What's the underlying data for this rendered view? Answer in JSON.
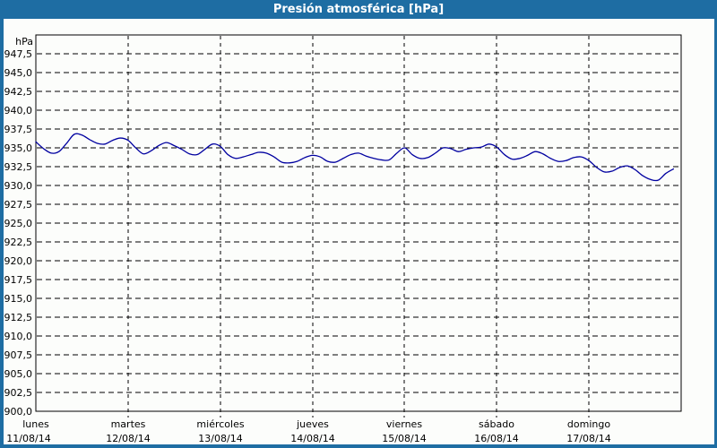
{
  "window": {
    "title": "Presión atmosférica [hPa]"
  },
  "colors": {
    "frame_blue": "#1E6DA3",
    "panel_bg": "#FCFDFB",
    "grid_black": "#000000",
    "title_text": "#FFFFFF",
    "line_navy": "#0000A0"
  },
  "chart_data": {
    "type": "line",
    "title": "Presión atmosférica [hPa]",
    "ylabel": "hPa",
    "ylim": [
      900,
      950
    ],
    "ytick_step": 2.5,
    "ytick_labels": [
      "947,5",
      "945,0",
      "942,5",
      "940,0",
      "937,5",
      "935,0",
      "932,5",
      "930,0",
      "927,5",
      "925,0",
      "922,5",
      "920,0",
      "917,5",
      "915,0",
      "912,5",
      "910,0",
      "907,5",
      "905,0",
      "902,5",
      "900,0"
    ],
    "grid": "dashed",
    "legend_position": "none",
    "x_unit": "hours",
    "sample_interval_hours": 2,
    "x_start": "lunes 11/08/14 00:00",
    "days": [
      {
        "name": "lunes",
        "date": "11/08/14"
      },
      {
        "name": "martes",
        "date": "12/08/14"
      },
      {
        "name": "miércoles",
        "date": "13/08/14"
      },
      {
        "name": "jueves",
        "date": "14/08/14"
      },
      {
        "name": "viernes",
        "date": "15/08/14"
      },
      {
        "name": "sábado",
        "date": "16/08/14"
      },
      {
        "name": "domingo",
        "date": "17/08/14"
      }
    ],
    "series": [
      {
        "name": "Presión atmosférica",
        "color": "#0000A0",
        "values": [
          935.8,
          934.9,
          934.3,
          934.5,
          935.6,
          936.8,
          936.7,
          936.1,
          935.6,
          935.5,
          936.0,
          936.3,
          936.0,
          935.0,
          934.2,
          934.6,
          935.3,
          935.7,
          935.3,
          934.8,
          934.2,
          934.1,
          934.8,
          935.5,
          935.2,
          934.1,
          933.6,
          933.8,
          934.1,
          934.4,
          934.3,
          933.8,
          933.1,
          933.0,
          933.2,
          933.7,
          934.0,
          933.8,
          933.2,
          933.1,
          933.6,
          934.1,
          934.3,
          933.9,
          933.6,
          933.4,
          933.4,
          934.3,
          935.0,
          934.1,
          933.6,
          933.7,
          934.3,
          935.0,
          934.9,
          934.5,
          934.8,
          935.0,
          935.1,
          935.5,
          935.1,
          934.1,
          933.5,
          933.6,
          934.0,
          934.5,
          934.2,
          933.6,
          933.2,
          933.3,
          933.7,
          933.8,
          933.3,
          932.4,
          931.8,
          931.9,
          932.4,
          932.6,
          932.1,
          931.3,
          930.8,
          930.7,
          931.6,
          932.2
        ]
      }
    ]
  }
}
